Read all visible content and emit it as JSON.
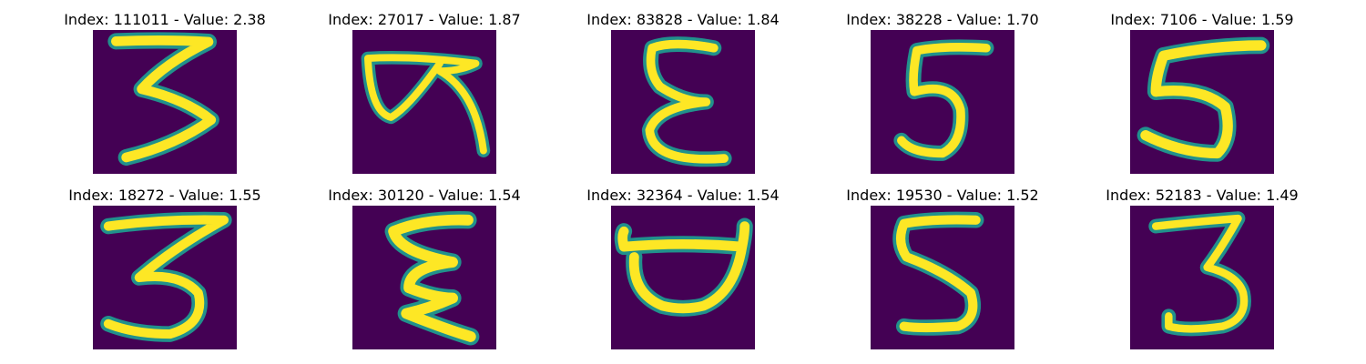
{
  "colors": {
    "background": "#440154",
    "mid": "#21918c",
    "stroke": "#fde725"
  },
  "panels": [
    {
      "title": "Index: 111011 - Value: 2.38",
      "digit": "3"
    },
    {
      "title": "Index: 27017 - Value: 1.87",
      "digit": "looped stroke"
    },
    {
      "title": "Index: 83828 - Value: 1.84",
      "digit": "epsilon"
    },
    {
      "title": "Index: 38228 - Value: 1.70",
      "digit": "5"
    },
    {
      "title": "Index: 7106 - Value: 1.59",
      "digit": "5"
    },
    {
      "title": "Index: 18272 - Value: 1.55",
      "digit": "3"
    },
    {
      "title": "Index: 30120 - Value: 1.54",
      "digit": "zigzag"
    },
    {
      "title": "Index: 32364 - Value: 1.54",
      "digit": "D"
    },
    {
      "title": "Index: 19530 - Value: 1.52",
      "digit": "5"
    },
    {
      "title": "Index: 52183 - Value: 1.49",
      "digit": "3"
    }
  ]
}
